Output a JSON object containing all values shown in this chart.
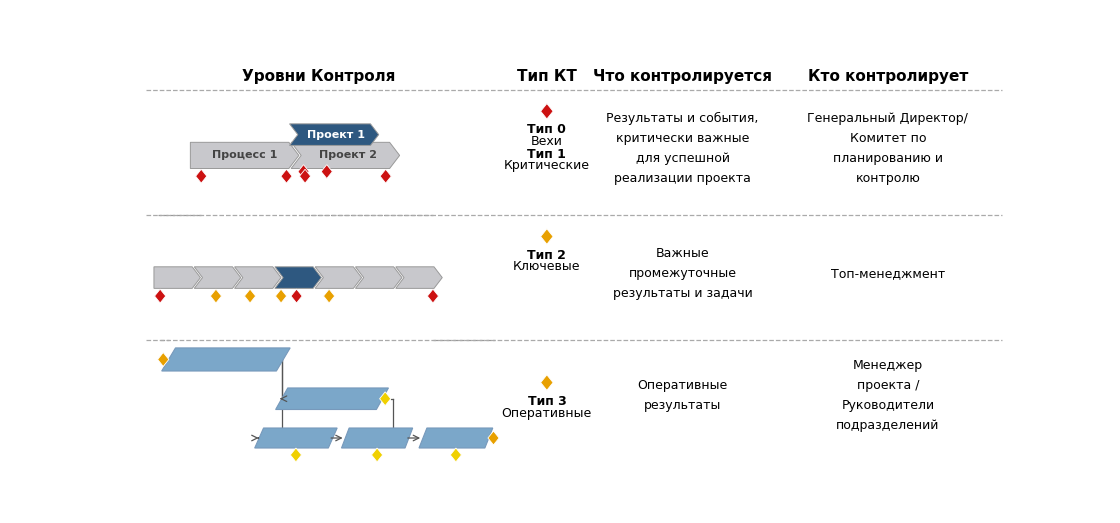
{
  "title_col1": "Уровни Контроля",
  "title_col2": "Тип КТ",
  "title_col3": "Что контролируется",
  "title_col4": "Кто контролирует",
  "row1_what": "Результаты и события,\nкритически важные\nдля успешной\nреализации проекта",
  "row1_who": "Генеральный Директор/\nКомитет по\nпланированию и\nконтролю",
  "row2_what": "Важные\nпромежуточные\nрезультаты и задачи",
  "row2_who": "Топ-менеджмент",
  "row3_what": "Оперативные\nрезультаты",
  "row3_who": "Менеджер\nпроекта /\nРуководители\nподразделений",
  "color_dark_blue": "#2E5880",
  "color_mid_blue": "#7BA7C9",
  "color_gray": "#C8C8CC",
  "color_gray_edge": "#999999",
  "color_red": "#CC1111",
  "color_yellow": "#E8A000",
  "color_yellow_bright": "#F0D000",
  "bg_color": "#FFFFFF",
  "sep_color": "#AAAAAA"
}
